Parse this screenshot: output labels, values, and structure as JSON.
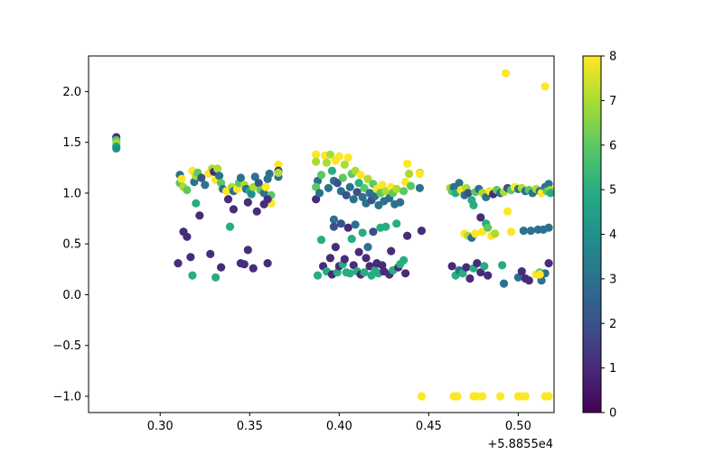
{
  "chart_data": {
    "type": "scatter",
    "title": "",
    "xlabel": "",
    "ylabel": "",
    "xlim": [
      0.26,
      0.52
    ],
    "ylim": [
      -1.16,
      2.35
    ],
    "x_offset_label": "+5.8855e4",
    "x_ticks": [
      0.3,
      0.35,
      0.4,
      0.45,
      0.5
    ],
    "x_tick_labels": [
      "0.30",
      "0.35",
      "0.40",
      "0.45",
      "0.50"
    ],
    "y_ticks": [
      -1.0,
      -0.5,
      0.0,
      0.5,
      1.0,
      1.5,
      2.0
    ],
    "y_tick_labels": [
      "−1.0",
      "−0.5",
      "0.0",
      "0.5",
      "1.0",
      "1.5",
      "2.0"
    ],
    "grid": false,
    "colormap": "viridis",
    "colorbar": {
      "range": [
        0,
        8
      ],
      "ticks": [
        0,
        1,
        2,
        3,
        4,
        5,
        6,
        7,
        8
      ],
      "tick_labels": [
        "0",
        "1",
        "2",
        "3",
        "4",
        "5",
        "6",
        "7",
        "8"
      ]
    },
    "points": [
      {
        "x": 0.2755,
        "y": 1.55,
        "c": 1
      },
      {
        "x": 0.2755,
        "y": 1.52,
        "c": 6
      },
      {
        "x": 0.2755,
        "y": 1.49,
        "c": 7
      },
      {
        "x": 0.2755,
        "y": 1.46,
        "c": 5
      },
      {
        "x": 0.2755,
        "y": 1.44,
        "c": 4
      },
      {
        "x": 0.311,
        "y": 1.18,
        "c": 3
      },
      {
        "x": 0.311,
        "y": 1.1,
        "c": 6
      },
      {
        "x": 0.312,
        "y": 1.14,
        "c": 8
      },
      {
        "x": 0.313,
        "y": 1.06,
        "c": 7
      },
      {
        "x": 0.315,
        "y": 1.03,
        "c": 6
      },
      {
        "x": 0.318,
        "y": 1.22,
        "c": 8
      },
      {
        "x": 0.319,
        "y": 1.11,
        "c": 3
      },
      {
        "x": 0.32,
        "y": 1.17,
        "c": 7
      },
      {
        "x": 0.321,
        "y": 1.2,
        "c": 6
      },
      {
        "x": 0.323,
        "y": 1.15,
        "c": 2
      },
      {
        "x": 0.325,
        "y": 1.08,
        "c": 3
      },
      {
        "x": 0.327,
        "y": 1.19,
        "c": 8
      },
      {
        "x": 0.329,
        "y": 1.24,
        "c": 7
      },
      {
        "x": 0.33,
        "y": 1.21,
        "c": 1
      },
      {
        "x": 0.331,
        "y": 1.13,
        "c": 8
      },
      {
        "x": 0.332,
        "y": 1.24,
        "c": 7
      },
      {
        "x": 0.333,
        "y": 1.17,
        "c": 3
      },
      {
        "x": 0.334,
        "y": 1.1,
        "c": 6
      },
      {
        "x": 0.335,
        "y": 1.04,
        "c": 3
      },
      {
        "x": 0.337,
        "y": 1.02,
        "c": 8
      },
      {
        "x": 0.338,
        "y": 0.94,
        "c": 1
      },
      {
        "x": 0.34,
        "y": 1.06,
        "c": 7
      },
      {
        "x": 0.341,
        "y": 1.02,
        "c": 3
      },
      {
        "x": 0.343,
        "y": 1.04,
        "c": 8
      },
      {
        "x": 0.344,
        "y": 1.1,
        "c": 6
      },
      {
        "x": 0.345,
        "y": 1.15,
        "c": 3
      },
      {
        "x": 0.347,
        "y": 1.08,
        "c": 7
      },
      {
        "x": 0.348,
        "y": 1.04,
        "c": 3
      },
      {
        "x": 0.35,
        "y": 1.02,
        "c": 5
      },
      {
        "x": 0.351,
        "y": 0.99,
        "c": 4
      },
      {
        "x": 0.352,
        "y": 1.06,
        "c": 7
      },
      {
        "x": 0.353,
        "y": 1.16,
        "c": 3
      },
      {
        "x": 0.355,
        "y": 1.1,
        "c": 2
      },
      {
        "x": 0.356,
        "y": 1.03,
        "c": 6
      },
      {
        "x": 0.358,
        "y": 1.0,
        "c": 3
      },
      {
        "x": 0.359,
        "y": 1.06,
        "c": 8
      },
      {
        "x": 0.36,
        "y": 1.14,
        "c": 3
      },
      {
        "x": 0.361,
        "y": 1.19,
        "c": 3
      },
      {
        "x": 0.362,
        "y": 0.98,
        "c": 6
      },
      {
        "x": 0.362,
        "y": 0.9,
        "c": 8
      },
      {
        "x": 0.366,
        "y": 1.28,
        "c": 8
      },
      {
        "x": 0.366,
        "y": 1.22,
        "c": 1
      },
      {
        "x": 0.366,
        "y": 1.16,
        "c": 3
      },
      {
        "x": 0.366,
        "y": 1.2,
        "c": 7
      },
      {
        "x": 0.313,
        "y": 0.62,
        "c": 1
      },
      {
        "x": 0.315,
        "y": 0.57,
        "c": 1
      },
      {
        "x": 0.32,
        "y": 0.9,
        "c": 5
      },
      {
        "x": 0.322,
        "y": 0.78,
        "c": 1
      },
      {
        "x": 0.339,
        "y": 0.67,
        "c": 5
      },
      {
        "x": 0.341,
        "y": 0.84,
        "c": 1
      },
      {
        "x": 0.349,
        "y": 0.91,
        "c": 1
      },
      {
        "x": 0.354,
        "y": 0.82,
        "c": 1
      },
      {
        "x": 0.358,
        "y": 0.89,
        "c": 1
      },
      {
        "x": 0.36,
        "y": 0.94,
        "c": 1
      },
      {
        "x": 0.31,
        "y": 0.31,
        "c": 1
      },
      {
        "x": 0.317,
        "y": 0.37,
        "c": 1
      },
      {
        "x": 0.318,
        "y": 0.19,
        "c": 5
      },
      {
        "x": 0.328,
        "y": 0.4,
        "c": 1
      },
      {
        "x": 0.331,
        "y": 0.17,
        "c": 5
      },
      {
        "x": 0.334,
        "y": 0.27,
        "c": 1
      },
      {
        "x": 0.345,
        "y": 0.31,
        "c": 1
      },
      {
        "x": 0.347,
        "y": 0.3,
        "c": 1
      },
      {
        "x": 0.349,
        "y": 0.44,
        "c": 1
      },
      {
        "x": 0.352,
        "y": 0.26,
        "c": 1
      },
      {
        "x": 0.36,
        "y": 0.31,
        "c": 1
      },
      {
        "x": 0.387,
        "y": 1.38,
        "c": 8
      },
      {
        "x": 0.387,
        "y": 1.31,
        "c": 7
      },
      {
        "x": 0.388,
        "y": 1.12,
        "c": 3
      },
      {
        "x": 0.387,
        "y": 1.06,
        "c": 6
      },
      {
        "x": 0.387,
        "y": 0.94,
        "c": 1
      },
      {
        "x": 0.389,
        "y": 1.0,
        "c": 3
      },
      {
        "x": 0.39,
        "y": 1.18,
        "c": 6
      },
      {
        "x": 0.392,
        "y": 1.37,
        "c": 8
      },
      {
        "x": 0.393,
        "y": 1.3,
        "c": 7
      },
      {
        "x": 0.394,
        "y": 1.05,
        "c": 3
      },
      {
        "x": 0.395,
        "y": 1.38,
        "c": 7
      },
      {
        "x": 0.396,
        "y": 1.22,
        "c": 5
      },
      {
        "x": 0.397,
        "y": 1.12,
        "c": 3
      },
      {
        "x": 0.398,
        "y": 1.32,
        "c": 8
      },
      {
        "x": 0.399,
        "y": 1.1,
        "c": 2
      },
      {
        "x": 0.4,
        "y": 1.36,
        "c": 8
      },
      {
        "x": 0.401,
        "y": 1.02,
        "c": 3
      },
      {
        "x": 0.402,
        "y": 1.15,
        "c": 6
      },
      {
        "x": 0.403,
        "y": 1.28,
        "c": 7
      },
      {
        "x": 0.404,
        "y": 0.98,
        "c": 2
      },
      {
        "x": 0.405,
        "y": 1.35,
        "c": 8
      },
      {
        "x": 0.406,
        "y": 1.06,
        "c": 3
      },
      {
        "x": 0.407,
        "y": 1.19,
        "c": 6
      },
      {
        "x": 0.408,
        "y": 0.94,
        "c": 3
      },
      {
        "x": 0.409,
        "y": 1.22,
        "c": 7
      },
      {
        "x": 0.41,
        "y": 1.01,
        "c": 2
      },
      {
        "x": 0.411,
        "y": 1.1,
        "c": 5
      },
      {
        "x": 0.412,
        "y": 1.18,
        "c": 8
      },
      {
        "x": 0.413,
        "y": 0.96,
        "c": 3
      },
      {
        "x": 0.414,
        "y": 1.05,
        "c": 6
      },
      {
        "x": 0.415,
        "y": 0.9,
        "c": 3
      },
      {
        "x": 0.416,
        "y": 1.14,
        "c": 7
      },
      {
        "x": 0.417,
        "y": 1.0,
        "c": 3
      },
      {
        "x": 0.418,
        "y": 0.93,
        "c": 2
      },
      {
        "x": 0.419,
        "y": 1.09,
        "c": 6
      },
      {
        "x": 0.42,
        "y": 0.97,
        "c": 3
      },
      {
        "x": 0.421,
        "y": 1.04,
        "c": 8
      },
      {
        "x": 0.422,
        "y": 0.88,
        "c": 3
      },
      {
        "x": 0.423,
        "y": 1.0,
        "c": 6
      },
      {
        "x": 0.424,
        "y": 1.08,
        "c": 8
      },
      {
        "x": 0.425,
        "y": 0.92,
        "c": 3
      },
      {
        "x": 0.426,
        "y": 1.02,
        "c": 7
      },
      {
        "x": 0.428,
        "y": 0.95,
        "c": 3
      },
      {
        "x": 0.429,
        "y": 1.06,
        "c": 8
      },
      {
        "x": 0.43,
        "y": 1.0,
        "c": 6
      },
      {
        "x": 0.431,
        "y": 0.89,
        "c": 3
      },
      {
        "x": 0.432,
        "y": 1.04,
        "c": 7
      },
      {
        "x": 0.434,
        "y": 0.91,
        "c": 3
      },
      {
        "x": 0.436,
        "y": 1.02,
        "c": 6
      },
      {
        "x": 0.437,
        "y": 1.11,
        "c": 8
      },
      {
        "x": 0.438,
        "y": 1.29,
        "c": 8
      },
      {
        "x": 0.439,
        "y": 1.19,
        "c": 7
      },
      {
        "x": 0.44,
        "y": 1.07,
        "c": 6
      },
      {
        "x": 0.445,
        "y": 1.2,
        "c": 7
      },
      {
        "x": 0.445,
        "y": 1.19,
        "c": 8
      },
      {
        "x": 0.445,
        "y": 1.05,
        "c": 3
      },
      {
        "x": 0.388,
        "y": 0.19,
        "c": 5
      },
      {
        "x": 0.39,
        "y": 0.54,
        "c": 5
      },
      {
        "x": 0.391,
        "y": 0.28,
        "c": 1
      },
      {
        "x": 0.393,
        "y": 0.23,
        "c": 5
      },
      {
        "x": 0.395,
        "y": 0.36,
        "c": 1
      },
      {
        "x": 0.396,
        "y": 0.2,
        "c": 1
      },
      {
        "x": 0.397,
        "y": 0.74,
        "c": 3
      },
      {
        "x": 0.397,
        "y": 0.67,
        "c": 2
      },
      {
        "x": 0.398,
        "y": 0.47,
        "c": 1
      },
      {
        "x": 0.399,
        "y": 0.22,
        "c": 5
      },
      {
        "x": 0.4,
        "y": 0.28,
        "c": 1
      },
      {
        "x": 0.401,
        "y": 0.7,
        "c": 2
      },
      {
        "x": 0.402,
        "y": 0.3,
        "c": 5
      },
      {
        "x": 0.403,
        "y": 0.35,
        "c": 1
      },
      {
        "x": 0.404,
        "y": 0.22,
        "c": 5
      },
      {
        "x": 0.405,
        "y": 0.66,
        "c": 1
      },
      {
        "x": 0.406,
        "y": 0.21,
        "c": 5
      },
      {
        "x": 0.407,
        "y": 0.55,
        "c": 5
      },
      {
        "x": 0.408,
        "y": 0.29,
        "c": 1
      },
      {
        "x": 0.409,
        "y": 0.69,
        "c": 3
      },
      {
        "x": 0.41,
        "y": 0.23,
        "c": 5
      },
      {
        "x": 0.411,
        "y": 0.42,
        "c": 1
      },
      {
        "x": 0.412,
        "y": 0.2,
        "c": 1
      },
      {
        "x": 0.413,
        "y": 0.61,
        "c": 5
      },
      {
        "x": 0.414,
        "y": 0.22,
        "c": 5
      },
      {
        "x": 0.415,
        "y": 0.36,
        "c": 1
      },
      {
        "x": 0.416,
        "y": 0.47,
        "c": 3
      },
      {
        "x": 0.417,
        "y": 0.28,
        "c": 1
      },
      {
        "x": 0.418,
        "y": 0.19,
        "c": 5
      },
      {
        "x": 0.419,
        "y": 0.62,
        "c": 2
      },
      {
        "x": 0.42,
        "y": 0.24,
        "c": 5
      },
      {
        "x": 0.421,
        "y": 0.31,
        "c": 1
      },
      {
        "x": 0.422,
        "y": 0.21,
        "c": 5
      },
      {
        "x": 0.423,
        "y": 0.66,
        "c": 5
      },
      {
        "x": 0.424,
        "y": 0.29,
        "c": 1
      },
      {
        "x": 0.425,
        "y": 0.23,
        "c": 1
      },
      {
        "x": 0.426,
        "y": 0.67,
        "c": 5
      },
      {
        "x": 0.428,
        "y": 0.2,
        "c": 1
      },
      {
        "x": 0.429,
        "y": 0.43,
        "c": 1
      },
      {
        "x": 0.43,
        "y": 0.24,
        "c": 5
      },
      {
        "x": 0.432,
        "y": 0.7,
        "c": 5
      },
      {
        "x": 0.433,
        "y": 0.27,
        "c": 1
      },
      {
        "x": 0.434,
        "y": 0.3,
        "c": 5
      },
      {
        "x": 0.436,
        "y": 0.34,
        "c": 5
      },
      {
        "x": 0.437,
        "y": 0.21,
        "c": 1
      },
      {
        "x": 0.438,
        "y": 0.58,
        "c": 1
      },
      {
        "x": 0.446,
        "y": 0.63,
        "c": 1
      },
      {
        "x": 0.462,
        "y": 1.05,
        "c": 7
      },
      {
        "x": 0.463,
        "y": 1.02,
        "c": 6
      },
      {
        "x": 0.464,
        "y": 1.06,
        "c": 3
      },
      {
        "x": 0.465,
        "y": 1.0,
        "c": 5
      },
      {
        "x": 0.467,
        "y": 1.1,
        "c": 3
      },
      {
        "x": 0.468,
        "y": 1.03,
        "c": 8
      },
      {
        "x": 0.47,
        "y": 0.98,
        "c": 3
      },
      {
        "x": 0.471,
        "y": 1.05,
        "c": 7
      },
      {
        "x": 0.472,
        "y": 1.0,
        "c": 2
      },
      {
        "x": 0.474,
        "y": 0.93,
        "c": 5
      },
      {
        "x": 0.475,
        "y": 0.88,
        "c": 5
      },
      {
        "x": 0.476,
        "y": 1.01,
        "c": 6
      },
      {
        "x": 0.478,
        "y": 1.04,
        "c": 3
      },
      {
        "x": 0.48,
        "y": 1.0,
        "c": 7
      },
      {
        "x": 0.482,
        "y": 0.96,
        "c": 3
      },
      {
        "x": 0.484,
        "y": 1.02,
        "c": 8
      },
      {
        "x": 0.486,
        "y": 0.99,
        "c": 1
      },
      {
        "x": 0.488,
        "y": 1.03,
        "c": 6
      },
      {
        "x": 0.49,
        "y": 1.0,
        "c": 3
      },
      {
        "x": 0.492,
        "y": 1.01,
        "c": 7
      },
      {
        "x": 0.494,
        "y": 1.05,
        "c": 2
      },
      {
        "x": 0.496,
        "y": 1.03,
        "c": 6
      },
      {
        "x": 0.498,
        "y": 1.06,
        "c": 8
      },
      {
        "x": 0.5,
        "y": 1.04,
        "c": 3
      },
      {
        "x": 0.502,
        "y": 1.05,
        "c": 7
      },
      {
        "x": 0.504,
        "y": 1.02,
        "c": 3
      },
      {
        "x": 0.506,
        "y": 1.03,
        "c": 6
      },
      {
        "x": 0.508,
        "y": 1.0,
        "c": 3
      },
      {
        "x": 0.51,
        "y": 1.04,
        "c": 7
      },
      {
        "x": 0.512,
        "y": 1.02,
        "c": 3
      },
      {
        "x": 0.513,
        "y": 1.0,
        "c": 8
      },
      {
        "x": 0.515,
        "y": 1.06,
        "c": 3
      },
      {
        "x": 0.516,
        "y": 1.02,
        "c": 6
      },
      {
        "x": 0.517,
        "y": 1.09,
        "c": 3
      },
      {
        "x": 0.518,
        "y": 1.03,
        "c": 7
      },
      {
        "x": 0.518,
        "y": 1.0,
        "c": 5
      },
      {
        "x": 0.47,
        "y": 0.6,
        "c": 8
      },
      {
        "x": 0.472,
        "y": 0.58,
        "c": 7
      },
      {
        "x": 0.474,
        "y": 0.56,
        "c": 3
      },
      {
        "x": 0.476,
        "y": 0.6,
        "c": 8
      },
      {
        "x": 0.479,
        "y": 0.76,
        "c": 1
      },
      {
        "x": 0.48,
        "y": 0.62,
        "c": 8
      },
      {
        "x": 0.482,
        "y": 0.7,
        "c": 5
      },
      {
        "x": 0.483,
        "y": 0.66,
        "c": 6
      },
      {
        "x": 0.485,
        "y": 0.58,
        "c": 8
      },
      {
        "x": 0.487,
        "y": 0.6,
        "c": 7
      },
      {
        "x": 0.494,
        "y": 0.82,
        "c": 8
      },
      {
        "x": 0.496,
        "y": 0.62,
        "c": 8
      },
      {
        "x": 0.503,
        "y": 0.63,
        "c": 3
      },
      {
        "x": 0.507,
        "y": 0.63,
        "c": 3
      },
      {
        "x": 0.511,
        "y": 0.64,
        "c": 3
      },
      {
        "x": 0.514,
        "y": 0.64,
        "c": 3
      },
      {
        "x": 0.517,
        "y": 0.66,
        "c": 3
      },
      {
        "x": 0.463,
        "y": 0.28,
        "c": 1
      },
      {
        "x": 0.465,
        "y": 0.19,
        "c": 5
      },
      {
        "x": 0.467,
        "y": 0.24,
        "c": 3
      },
      {
        "x": 0.469,
        "y": 0.21,
        "c": 5
      },
      {
        "x": 0.471,
        "y": 0.27,
        "c": 1
      },
      {
        "x": 0.473,
        "y": 0.16,
        "c": 1
      },
      {
        "x": 0.475,
        "y": 0.26,
        "c": 5
      },
      {
        "x": 0.477,
        "y": 0.31,
        "c": 1
      },
      {
        "x": 0.479,
        "y": 0.22,
        "c": 1
      },
      {
        "x": 0.481,
        "y": 0.28,
        "c": 5
      },
      {
        "x": 0.483,
        "y": 0.19,
        "c": 1
      },
      {
        "x": 0.491,
        "y": 0.29,
        "c": 5
      },
      {
        "x": 0.492,
        "y": 0.11,
        "c": 3
      },
      {
        "x": 0.5,
        "y": 0.17,
        "c": 3
      },
      {
        "x": 0.502,
        "y": 0.23,
        "c": 1
      },
      {
        "x": 0.504,
        "y": 0.16,
        "c": 1
      },
      {
        "x": 0.506,
        "y": 0.14,
        "c": 1
      },
      {
        "x": 0.51,
        "y": 0.2,
        "c": 8
      },
      {
        "x": 0.512,
        "y": 0.22,
        "c": 6
      },
      {
        "x": 0.513,
        "y": 0.14,
        "c": 3
      },
      {
        "x": 0.515,
        "y": 0.21,
        "c": 3
      },
      {
        "x": 0.517,
        "y": 0.31,
        "c": 1
      },
      {
        "x": 0.512,
        "y": 0.2,
        "c": 8
      },
      {
        "x": 0.446,
        "y": -1.0,
        "c": 8
      },
      {
        "x": 0.464,
        "y": -1.0,
        "c": 8
      },
      {
        "x": 0.466,
        "y": -1.0,
        "c": 8
      },
      {
        "x": 0.475,
        "y": -1.0,
        "c": 8
      },
      {
        "x": 0.477,
        "y": -1.0,
        "c": 8
      },
      {
        "x": 0.48,
        "y": -1.0,
        "c": 8
      },
      {
        "x": 0.49,
        "y": -1.0,
        "c": 8
      },
      {
        "x": 0.5,
        "y": -1.0,
        "c": 8
      },
      {
        "x": 0.502,
        "y": -1.0,
        "c": 8
      },
      {
        "x": 0.504,
        "y": -1.0,
        "c": 8
      },
      {
        "x": 0.515,
        "y": -1.0,
        "c": 8
      },
      {
        "x": 0.517,
        "y": -1.0,
        "c": 8
      },
      {
        "x": 0.493,
        "y": 2.18,
        "c": 8
      },
      {
        "x": 0.515,
        "y": 2.05,
        "c": 8
      }
    ]
  }
}
